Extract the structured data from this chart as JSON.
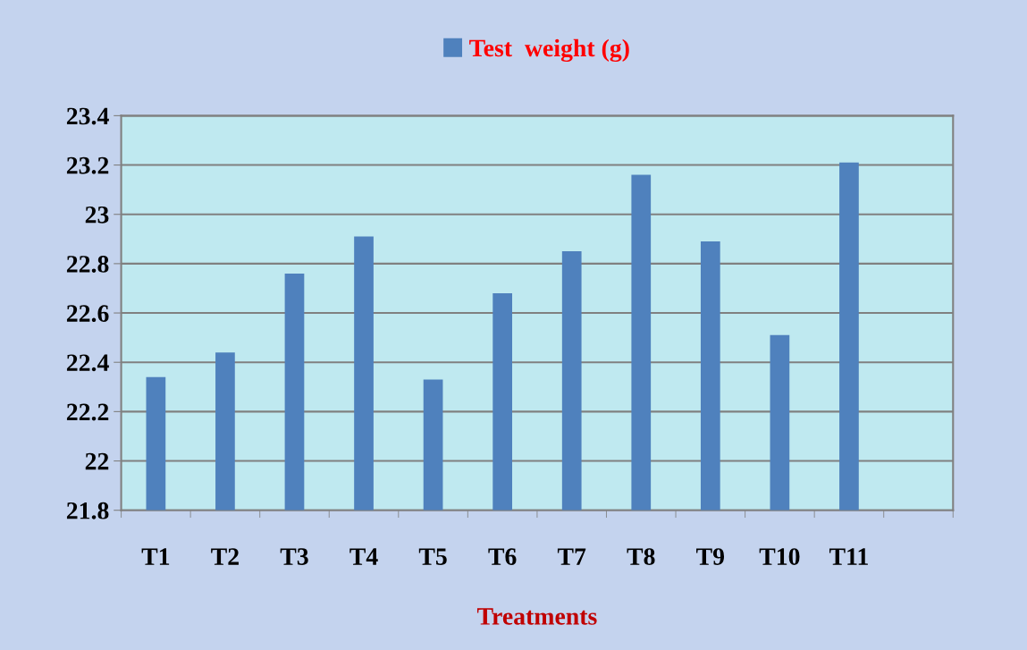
{
  "chart_data": {
    "type": "bar",
    "xlabel": "Treatments",
    "categories": [
      "T1",
      "T2",
      "T3",
      "T4",
      "T5",
      "T6",
      "T7",
      "T8",
      "T9",
      "T10",
      "T11",
      null
    ],
    "series": [
      {
        "name": "Test  weight (g)",
        "color": "#4f81bd",
        "values": [
          22.34,
          22.44,
          22.76,
          22.91,
          22.33,
          22.68,
          22.85,
          23.16,
          22.89,
          22.51,
          23.21,
          null
        ]
      }
    ],
    "ylim": [
      21.8,
      23.4
    ],
    "yticks": [
      21.8,
      22,
      22.2,
      22.4,
      22.6,
      22.8,
      23,
      23.2,
      23.4
    ],
    "grid": "y",
    "legend": "top"
  }
}
